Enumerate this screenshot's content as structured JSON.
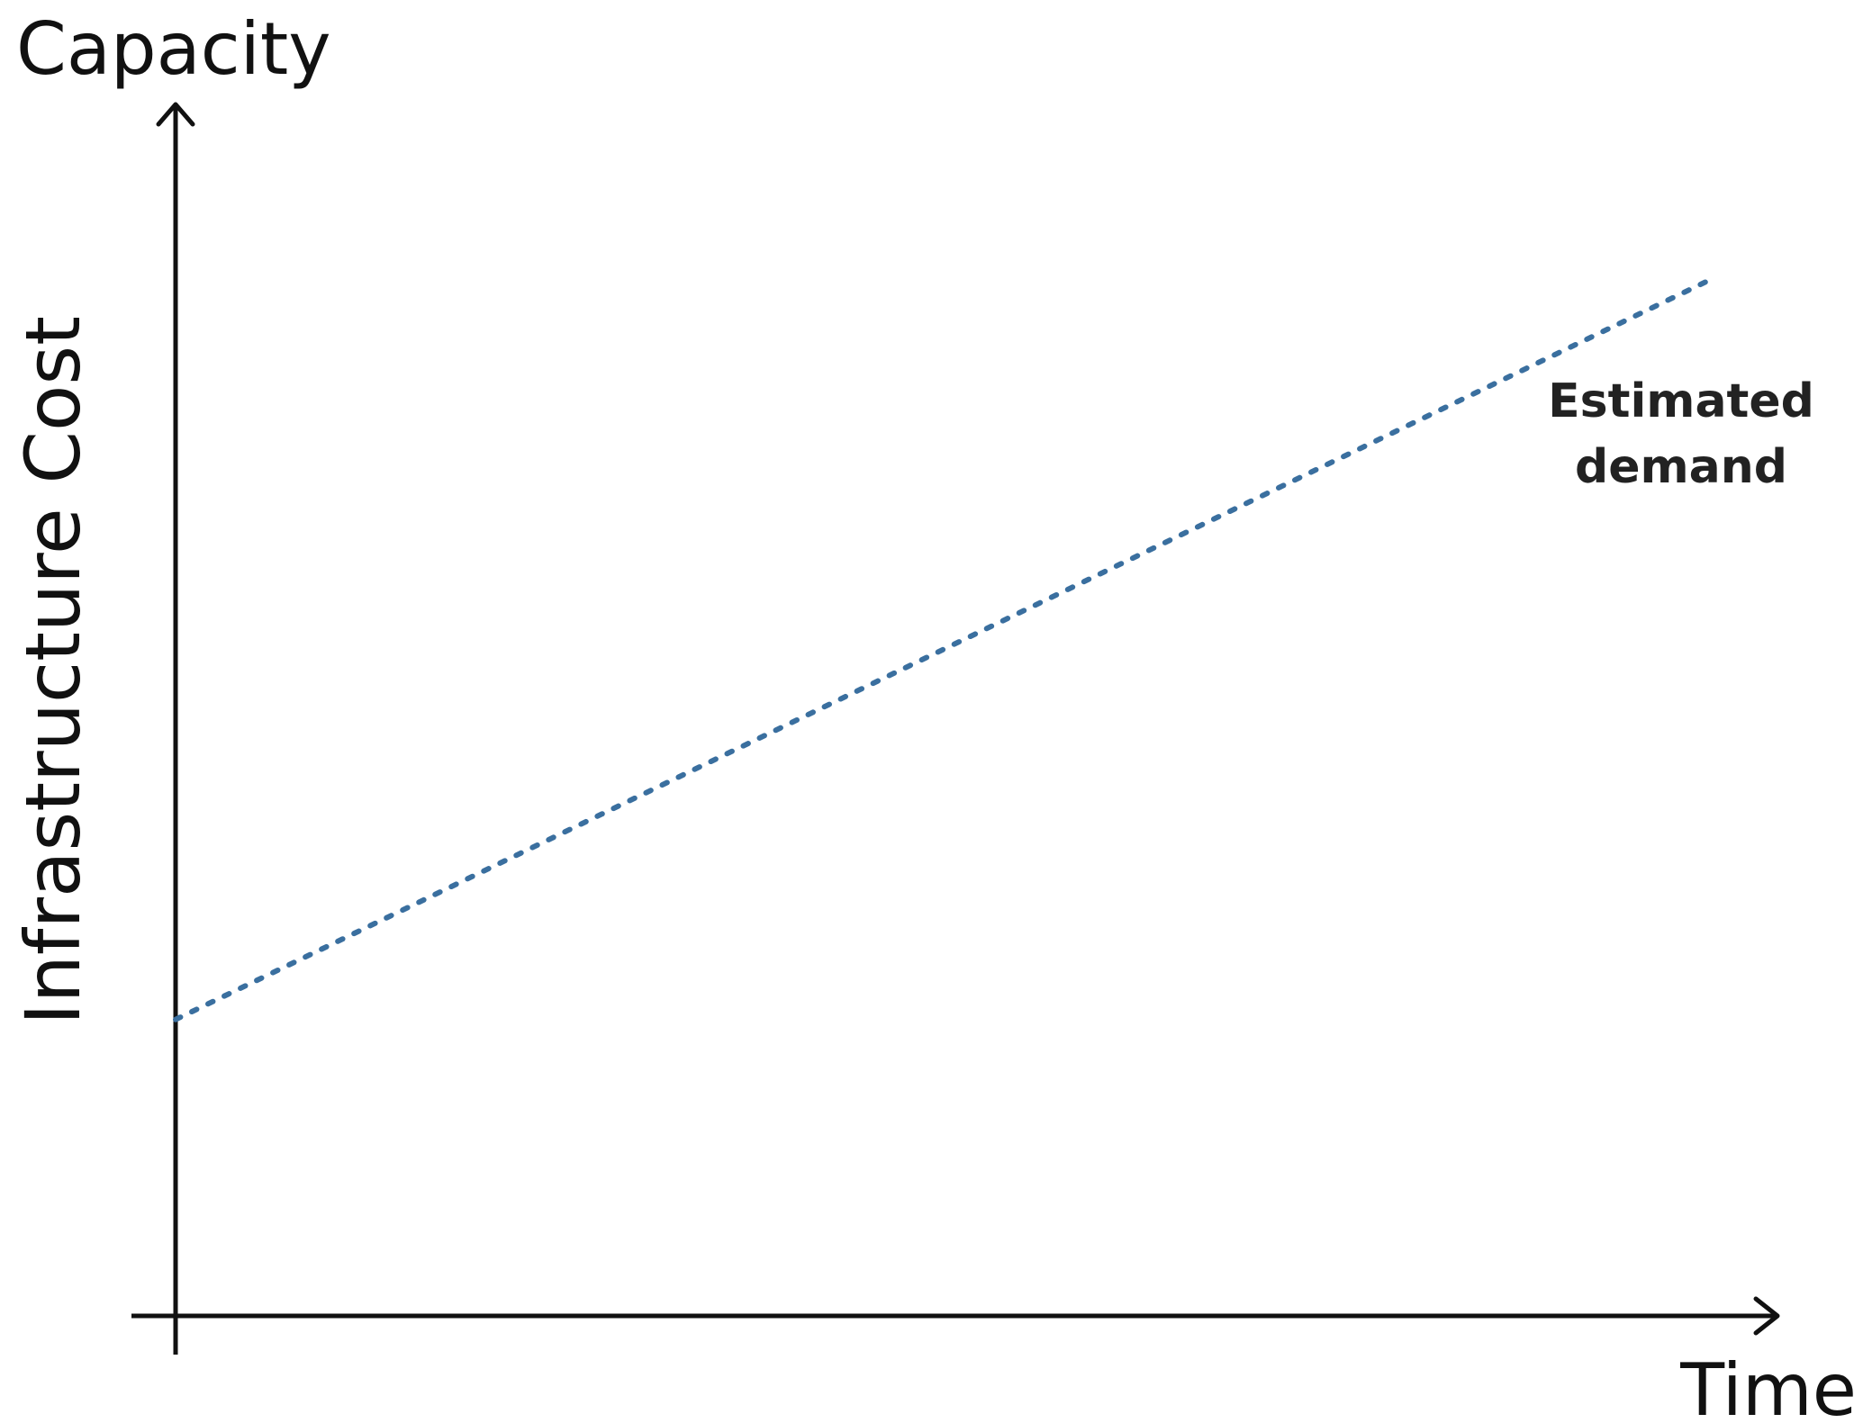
{
  "chart_data": {
    "type": "line",
    "title": "Capacity",
    "xlabel": "Time",
    "ylabel": "Infrastructure Cost",
    "xlim": [
      0,
      100
    ],
    "ylim": [
      0,
      100
    ],
    "grid": false,
    "series": [
      {
        "name": "Estimated demand",
        "style": "dotted",
        "color": "#3a6f9f",
        "x": [
          0,
          100
        ],
        "y": [
          24.5,
          85.5
        ]
      }
    ],
    "annotations": [
      {
        "text_line1": "Estimated",
        "text_line2": "demand"
      }
    ]
  }
}
